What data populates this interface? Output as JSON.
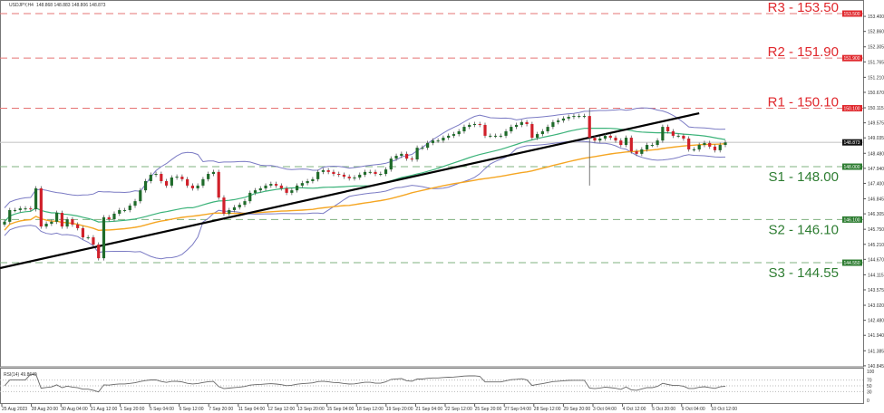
{
  "header": {
    "symbol": "USDJPY,H4",
    "ohlc": "148.868 148.883 148.806 148.873"
  },
  "colors": {
    "resistance": "#e0282d",
    "support": "#2e7d32",
    "bull": "#1f6b2a",
    "bear": "#d0202a",
    "bands": "#7b7bc4",
    "ma_fast": "#3cb37a",
    "ma_slow": "#f5a623",
    "trendline": "#000000"
  },
  "chart_data": {
    "type": "candlestick",
    "title": "USDJPY,H4",
    "ylim": [
      140.845,
      153.5
    ],
    "price_ticks": [
      "153.400",
      "152.860",
      "152.305",
      "151.765",
      "151.210",
      "150.670",
      "150.115",
      "149.575",
      "149.035",
      "148.480",
      "147.940",
      "147.400",
      "146.845",
      "146.305",
      "145.750",
      "145.210",
      "144.670",
      "144.115",
      "143.575",
      "143.020",
      "142.480",
      "141.940",
      "141.385",
      "140.845"
    ],
    "current_price": {
      "value": 148.873,
      "label": "148.873"
    },
    "closes": [
      146.02,
      146.44,
      146.44,
      146.5,
      146.5,
      146.47,
      147.22,
      145.85,
      145.95,
      146.02,
      146.34,
      145.85,
      146.11,
      145.92,
      145.79,
      145.46,
      145.46,
      145.2,
      144.71,
      146.18,
      146.11,
      146.31,
      146.44,
      146.44,
      146.6,
      146.76,
      147.15,
      147.48,
      147.71,
      147.74,
      147.48,
      147.32,
      147.61,
      147.64,
      147.55,
      147.32,
      147.22,
      147.32,
      147.55,
      147.74,
      147.81,
      146.89,
      146.31,
      146.44,
      146.54,
      146.63,
      146.76,
      147.06,
      147.15,
      147.22,
      147.32,
      147.38,
      147.32,
      147.22,
      147.06,
      147.15,
      147.32,
      147.41,
      147.48,
      147.55,
      147.81,
      147.87,
      147.81,
      147.74,
      147.71,
      147.64,
      147.58,
      147.61,
      147.71,
      147.81,
      147.81,
      147.74,
      147.74,
      147.9,
      148.29,
      148.39,
      148.46,
      148.29,
      148.26,
      148.68,
      148.68,
      148.85,
      148.94,
      148.94,
      149.04,
      149.11,
      149.17,
      149.27,
      149.43,
      149.5,
      149.53,
      149.5,
      149.11,
      149.11,
      149.11,
      149.11,
      149.27,
      149.43,
      149.5,
      149.6,
      149.53,
      149.04,
      149.17,
      149.27,
      149.43,
      149.6,
      149.66,
      149.73,
      149.79,
      149.82,
      149.82,
      149.82,
      149.04,
      148.94,
      149.01,
      149.11,
      149.04,
      148.94,
      148.78,
      149.04,
      148.55,
      148.46,
      148.62,
      148.78,
      148.78,
      148.94,
      149.43,
      149.27,
      149.11,
      149.11,
      149.01,
      148.62,
      148.62,
      148.78,
      148.85,
      148.72,
      148.59,
      148.78,
      148.87
    ],
    "spike": {
      "index": 112,
      "high": 150.1,
      "low": 147.32
    },
    "trendline": {
      "start": [
        0,
        144.39
      ],
      "end": [
        133,
        149.92
      ]
    },
    "levels": [
      {
        "name": "R3",
        "label": "R3 - 153.50",
        "value": 153.5,
        "tag": "153.500",
        "kind": "resistance"
      },
      {
        "name": "R2",
        "label": "R2 - 151.90",
        "value": 151.9,
        "tag": "151.900",
        "kind": "resistance"
      },
      {
        "name": "R1",
        "label": "R1 - 150.10",
        "value": 150.1,
        "tag": "150.100",
        "kind": "resistance"
      },
      {
        "name": "S1",
        "label": "S1 - 148.00",
        "value": 148.0,
        "tag": "148.000",
        "kind": "support"
      },
      {
        "name": "S2",
        "label": "S2 - 146.10",
        "value": 146.1,
        "tag": "146.100",
        "kind": "support"
      },
      {
        "name": "S3",
        "label": "S3 - 144.55",
        "value": 144.55,
        "tag": "144.550",
        "kind": "support"
      }
    ],
    "rsi": {
      "label": "RSI(14) 49.8649",
      "period": 14,
      "levels": [
        70,
        50,
        30
      ],
      "ticks": [
        "100",
        "70",
        "50",
        "30",
        "0"
      ]
    },
    "time_labels": [
      "25 Aug 2023",
      "28 Aug 20:00",
      "30 Aug 04:00",
      "31 Aug 12:00",
      "1 Sep 20:00",
      "5 Sep 04:00",
      "6 Sep 12:00",
      "7 Sep 20:00",
      "11 Sep 04:00",
      "12 Sep 12:00",
      "13 Sep 20:00",
      "15 Sep 04:00",
      "18 Sep 12:00",
      "19 Sep 20:00",
      "21 Sep 04:00",
      "22 Sep 12:00",
      "25 Sep 20:00",
      "27 Sep 04:00",
      "28 Sep 12:00",
      "29 Sep 20:00",
      "3 Oct 04:00",
      "4 Oct 12:00",
      "5 Oct 20:00",
      "9 Oct 04:00",
      "10 Oct 12:00"
    ]
  }
}
